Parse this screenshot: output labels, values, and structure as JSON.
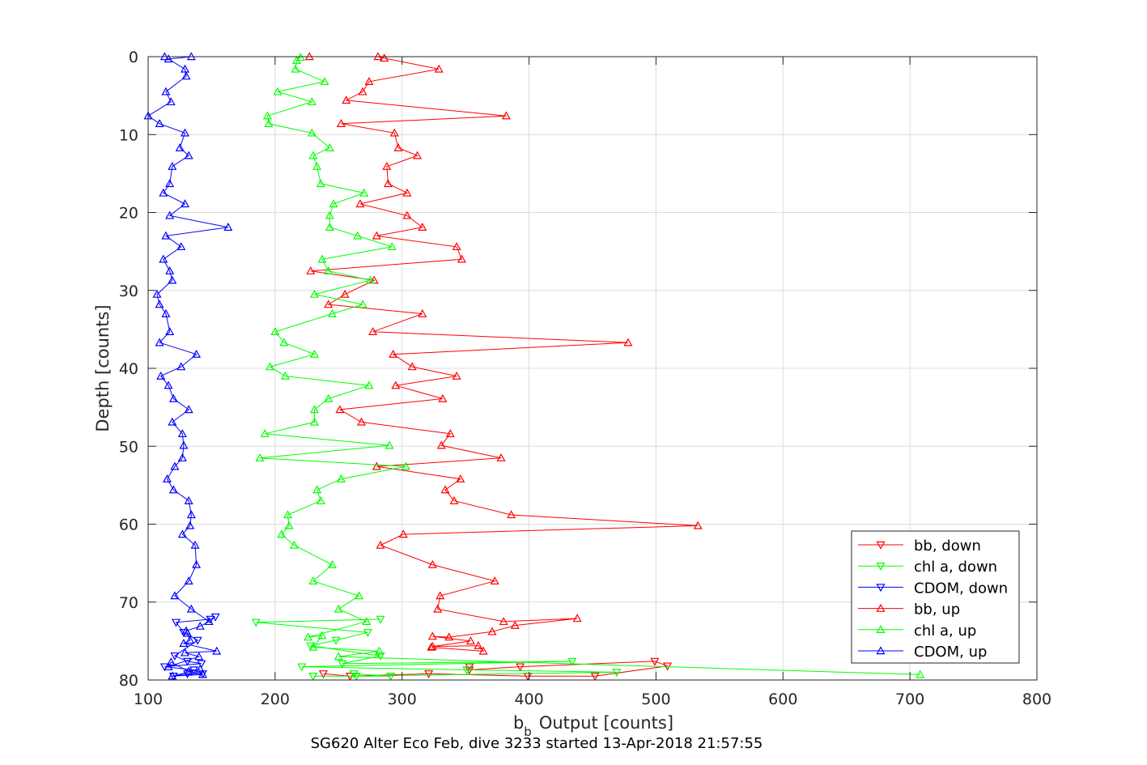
{
  "chart_data": {
    "type": "line",
    "title": "",
    "caption": "SG620 Alter Eco Feb, dive 3233 started 13-Apr-2018 21:57:55",
    "xlabel_main": "b",
    "xlabel_sub": "b",
    "xlabel_rest": "Output [counts]",
    "ylabel": "Depth [counts]",
    "xlim": [
      100,
      800
    ],
    "ylim": [
      0,
      80
    ],
    "y_reversed": true,
    "grid": true,
    "legend_position": "bottom-right",
    "xticks": [
      "100",
      "200",
      "300",
      "400",
      "500",
      "600",
      "700",
      "800"
    ],
    "yticks": [
      "0",
      "10",
      "20",
      "30",
      "40",
      "50",
      "60",
      "70",
      "80"
    ],
    "series": [
      {
        "name": "bb, down",
        "color": "#ff0000",
        "marker": "triangle-down",
        "points": [
          [
            238,
            79.2
          ],
          [
            259,
            79.5
          ],
          [
            321,
            79.2
          ],
          [
            399,
            79.5
          ],
          [
            452,
            79.5
          ],
          [
            509,
            78.2
          ],
          [
            499,
            77.6
          ],
          [
            393,
            78.3
          ],
          [
            353,
            78.7
          ],
          [
            353,
            78.3
          ]
        ]
      },
      {
        "name": "chl a, down",
        "color": "#00ff00",
        "marker": "triangle-down",
        "points": [
          [
            230,
            79.5
          ],
          [
            291,
            79.5
          ],
          [
            262,
            79.2
          ],
          [
            264,
            79.5
          ],
          [
            469,
            79.0
          ],
          [
            351,
            78.7
          ],
          [
            221,
            78.3
          ],
          [
            434,
            77.6
          ],
          [
            253,
            77.9
          ],
          [
            283,
            76.9
          ],
          [
            228,
            75.6
          ],
          [
            248,
            74.9
          ],
          [
            273,
            73.9
          ],
          [
            185,
            72.6
          ],
          [
            283,
            72.2
          ]
        ]
      },
      {
        "name": "CDOM, down",
        "color": "#0000ff",
        "marker": "triangle-down",
        "points": [
          [
            120,
            79.5
          ],
          [
            131,
            79.2
          ],
          [
            143,
            79.2
          ],
          [
            136,
            78.7
          ],
          [
            113,
            78.3
          ],
          [
            142,
            77.9
          ],
          [
            131,
            77.6
          ],
          [
            121,
            76.9
          ],
          [
            139,
            74.9
          ],
          [
            128,
            73.9
          ],
          [
            122,
            72.6
          ],
          [
            149,
            72.2
          ],
          [
            153,
            71.9
          ]
        ]
      },
      {
        "name": "bb, up",
        "color": "#ff0000",
        "marker": "triangle-up",
        "points": [
          [
            227,
            0.0
          ],
          [
            281,
            0.0
          ],
          [
            286,
            0.2
          ],
          [
            329,
            1.6
          ],
          [
            274,
            3.2
          ],
          [
            269,
            4.5
          ],
          [
            256,
            5.6
          ],
          [
            382,
            7.6
          ],
          [
            252,
            8.6
          ],
          [
            294,
            9.8
          ],
          [
            297,
            11.7
          ],
          [
            312,
            12.7
          ],
          [
            288,
            14.1
          ],
          [
            289,
            16.3
          ],
          [
            304,
            17.5
          ],
          [
            267,
            18.9
          ],
          [
            304,
            20.4
          ],
          [
            316,
            21.9
          ],
          [
            280,
            23.0
          ],
          [
            343,
            24.4
          ],
          [
            347,
            26.0
          ],
          [
            228,
            27.5
          ],
          [
            278,
            28.7
          ],
          [
            255,
            30.5
          ],
          [
            242,
            31.8
          ],
          [
            316,
            33.0
          ],
          [
            277,
            35.3
          ],
          [
            478,
            36.7
          ],
          [
            293,
            38.2
          ],
          [
            308,
            39.8
          ],
          [
            343,
            41.0
          ],
          [
            295,
            42.2
          ],
          [
            332,
            43.9
          ],
          [
            251,
            45.3
          ],
          [
            268,
            46.9
          ],
          [
            338,
            48.4
          ],
          [
            331,
            49.9
          ],
          [
            378,
            51.5
          ],
          [
            280,
            52.6
          ],
          [
            346,
            54.2
          ],
          [
            334,
            55.6
          ],
          [
            341,
            57.0
          ],
          [
            386,
            58.8
          ],
          [
            533,
            60.2
          ],
          [
            301,
            61.3
          ],
          [
            283,
            62.7
          ],
          [
            324,
            65.2
          ],
          [
            373,
            67.3
          ],
          [
            330,
            69.2
          ],
          [
            328,
            70.9
          ],
          [
            380,
            72.5
          ],
          [
            438,
            72.1
          ],
          [
            389,
            73.0
          ],
          [
            371,
            73.8
          ],
          [
            337,
            74.5
          ],
          [
            324,
            74.4
          ],
          [
            354,
            75.0
          ],
          [
            324,
            75.7
          ],
          [
            360,
            75.6
          ],
          [
            364,
            76.3
          ],
          [
            323,
            75.8
          ]
        ]
      },
      {
        "name": "chl a, up",
        "color": "#00ff00",
        "marker": "triangle-up",
        "points": [
          [
            220,
            0.1
          ],
          [
            217,
            0.5
          ],
          [
            216,
            1.6
          ],
          [
            239,
            3.2
          ],
          [
            202,
            4.5
          ],
          [
            229,
            5.8
          ],
          [
            194,
            7.6
          ],
          [
            195,
            8.6
          ],
          [
            229,
            9.8
          ],
          [
            243,
            11.7
          ],
          [
            230,
            12.7
          ],
          [
            233,
            14.1
          ],
          [
            236,
            16.3
          ],
          [
            270,
            17.5
          ],
          [
            246,
            18.9
          ],
          [
            243,
            20.4
          ],
          [
            243,
            21.9
          ],
          [
            265,
            23.0
          ],
          [
            292,
            24.4
          ],
          [
            237,
            26.0
          ],
          [
            242,
            27.5
          ],
          [
            275,
            28.7
          ],
          [
            231,
            30.5
          ],
          [
            269,
            31.8
          ],
          [
            245,
            33.0
          ],
          [
            200,
            35.3
          ],
          [
            207,
            36.7
          ],
          [
            231,
            38.2
          ],
          [
            196,
            39.8
          ],
          [
            208,
            41.0
          ],
          [
            274,
            42.2
          ],
          [
            242,
            43.9
          ],
          [
            231,
            45.3
          ],
          [
            231,
            46.9
          ],
          [
            192,
            48.4
          ],
          [
            290,
            49.9
          ],
          [
            188,
            51.5
          ],
          [
            303,
            52.6
          ],
          [
            252,
            54.2
          ],
          [
            233,
            55.6
          ],
          [
            236,
            57.0
          ],
          [
            210,
            58.8
          ],
          [
            211,
            60.2
          ],
          [
            205,
            61.3
          ],
          [
            215,
            62.7
          ],
          [
            245,
            65.2
          ],
          [
            230,
            67.3
          ],
          [
            266,
            69.2
          ],
          [
            250,
            70.9
          ],
          [
            272,
            72.5
          ],
          [
            226,
            74.5
          ],
          [
            237,
            74.3
          ],
          [
            230,
            75.8
          ],
          [
            282,
            76.3
          ],
          [
            250,
            77.0
          ],
          [
            708,
            79.3
          ]
        ]
      },
      {
        "name": "CDOM, up",
        "color": "#0000ff",
        "marker": "triangle-up",
        "points": [
          [
            113,
            0.0
          ],
          [
            134,
            0.0
          ],
          [
            116,
            0.3
          ],
          [
            129,
            1.6
          ],
          [
            130,
            2.5
          ],
          [
            114,
            4.5
          ],
          [
            118,
            5.8
          ],
          [
            100,
            7.6
          ],
          [
            109,
            8.6
          ],
          [
            129,
            9.8
          ],
          [
            125,
            11.7
          ],
          [
            132,
            12.7
          ],
          [
            119,
            14.1
          ],
          [
            117,
            16.3
          ],
          [
            112,
            17.5
          ],
          [
            129,
            18.9
          ],
          [
            117,
            20.4
          ],
          [
            163,
            21.9
          ],
          [
            114,
            23.0
          ],
          [
            126,
            24.4
          ],
          [
            112,
            26.0
          ],
          [
            117,
            27.5
          ],
          [
            119,
            28.7
          ],
          [
            107,
            30.5
          ],
          [
            109,
            31.8
          ],
          [
            114,
            33.0
          ],
          [
            117,
            35.3
          ],
          [
            109,
            36.7
          ],
          [
            138,
            38.2
          ],
          [
            126,
            39.8
          ],
          [
            110,
            41.0
          ],
          [
            116,
            42.2
          ],
          [
            120,
            43.9
          ],
          [
            132,
            45.3
          ],
          [
            119,
            46.9
          ],
          [
            127,
            48.4
          ],
          [
            128,
            49.9
          ],
          [
            127,
            51.5
          ],
          [
            121,
            52.6
          ],
          [
            115,
            54.2
          ],
          [
            120,
            55.6
          ],
          [
            132,
            57.0
          ],
          [
            134,
            58.8
          ],
          [
            133,
            60.2
          ],
          [
            127,
            61.3
          ],
          [
            137,
            62.7
          ],
          [
            138,
            65.2
          ],
          [
            132,
            67.3
          ],
          [
            121,
            69.2
          ],
          [
            134,
            70.9
          ],
          [
            148,
            72.5
          ],
          [
            141,
            73.1
          ],
          [
            130,
            73.7
          ],
          [
            131,
            74.0
          ],
          [
            133,
            74.9
          ],
          [
            128,
            75.3
          ],
          [
            154,
            76.3
          ],
          [
            129,
            76.5
          ],
          [
            140,
            77.0
          ],
          [
            116,
            78.3
          ],
          [
            118,
            77.7
          ],
          [
            132,
            78.9
          ],
          [
            143,
            79.3
          ],
          [
            119,
            79.5
          ],
          [
            141,
            78.6
          ]
        ]
      }
    ]
  }
}
